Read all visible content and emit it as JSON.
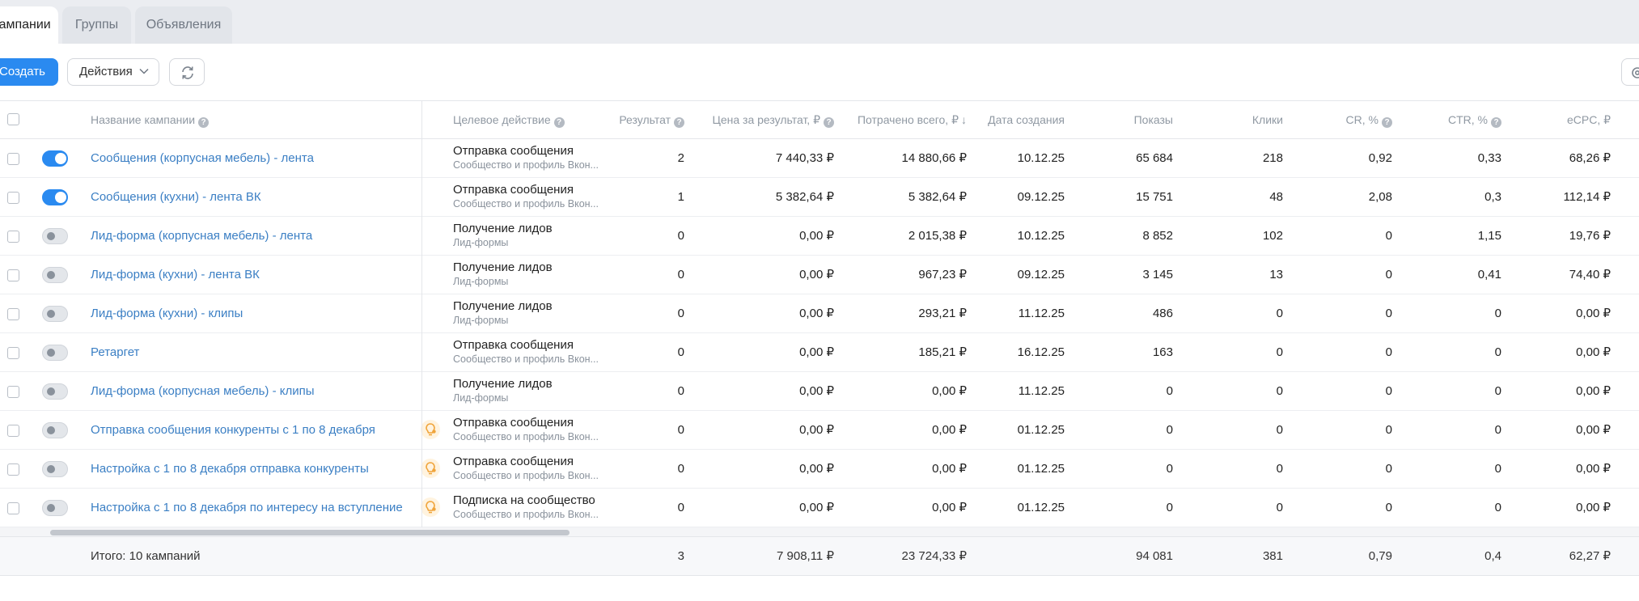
{
  "tabs": [
    "Кампании",
    "Группы",
    "Объявления"
  ],
  "toolbar": {
    "create_label": "Создать",
    "actions_label": "Действия"
  },
  "icons": {
    "refresh": "refresh-icon",
    "settings": "gear-icon",
    "hint": "question-icon",
    "recommendation": "lightbulb-icon"
  },
  "colors": {
    "accent": "#2a8af0",
    "link": "#3b7fc4",
    "recommendation": "#f0a43a"
  },
  "columns": {
    "name": "Название кампании",
    "goal": "Целевое действие",
    "result": "Результат",
    "price": "Цена за результат, ₽",
    "spent": "Потрачено всего, ₽",
    "date": "Дата создания",
    "shows": "Показы",
    "clicks": "Клики",
    "cr": "CR, %",
    "ctr": "CTR, %",
    "ecpc": "eCPC, ₽"
  },
  "rows": [
    {
      "enabled": true,
      "recommendation": false,
      "name": "Сообщения (корпусная мебель) - лента",
      "goal": "Отправка сообщения",
      "goal_sub": "Сообщество и профиль Вкон...",
      "result": "2",
      "price": "7 440,33 ₽",
      "spent": "14 880,66 ₽",
      "date": "10.12.25",
      "shows": "65 684",
      "clicks": "218",
      "cr": "0,92",
      "ctr": "0,33",
      "ecpc": "68,26 ₽"
    },
    {
      "enabled": true,
      "recommendation": false,
      "name": "Сообщения (кухни) - лента ВК",
      "goal": "Отправка сообщения",
      "goal_sub": "Сообщество и профиль Вкон...",
      "result": "1",
      "price": "5 382,64 ₽",
      "spent": "5 382,64 ₽",
      "date": "09.12.25",
      "shows": "15 751",
      "clicks": "48",
      "cr": "2,08",
      "ctr": "0,3",
      "ecpc": "112,14 ₽"
    },
    {
      "enabled": false,
      "recommendation": false,
      "name": "Лид-форма (корпусная мебель) - лента",
      "goal": "Получение лидов",
      "goal_sub": "Лид-формы",
      "result": "0",
      "price": "0,00 ₽",
      "spent": "2 015,38 ₽",
      "date": "10.12.25",
      "shows": "8 852",
      "clicks": "102",
      "cr": "0",
      "ctr": "1,15",
      "ecpc": "19,76 ₽"
    },
    {
      "enabled": false,
      "recommendation": false,
      "name": "Лид-форма (кухни) - лента ВК",
      "goal": "Получение лидов",
      "goal_sub": "Лид-формы",
      "result": "0",
      "price": "0,00 ₽",
      "spent": "967,23 ₽",
      "date": "09.12.25",
      "shows": "3 145",
      "clicks": "13",
      "cr": "0",
      "ctr": "0,41",
      "ecpc": "74,40 ₽"
    },
    {
      "enabled": false,
      "recommendation": false,
      "name": "Лид-форма (кухни) - клипы",
      "goal": "Получение лидов",
      "goal_sub": "Лид-формы",
      "result": "0",
      "price": "0,00 ₽",
      "spent": "293,21 ₽",
      "date": "11.12.25",
      "shows": "486",
      "clicks": "0",
      "cr": "0",
      "ctr": "0",
      "ecpc": "0,00 ₽"
    },
    {
      "enabled": false,
      "recommendation": false,
      "name": "Ретаргет",
      "goal": "Отправка сообщения",
      "goal_sub": "Сообщество и профиль Вкон...",
      "result": "0",
      "price": "0,00 ₽",
      "spent": "185,21 ₽",
      "date": "16.12.25",
      "shows": "163",
      "clicks": "0",
      "cr": "0",
      "ctr": "0",
      "ecpc": "0,00 ₽"
    },
    {
      "enabled": false,
      "recommendation": false,
      "name": "Лид-форма (корпусная мебель) - клипы",
      "goal": "Получение лидов",
      "goal_sub": "Лид-формы",
      "result": "0",
      "price": "0,00 ₽",
      "spent": "0,00 ₽",
      "date": "11.12.25",
      "shows": "0",
      "clicks": "0",
      "cr": "0",
      "ctr": "0",
      "ecpc": "0,00 ₽"
    },
    {
      "enabled": false,
      "recommendation": true,
      "name": "Отправка сообщения конкуренты с 1 по 8 декабря",
      "goal": "Отправка сообщения",
      "goal_sub": "Сообщество и профиль Вкон...",
      "result": "0",
      "price": "0,00 ₽",
      "spent": "0,00 ₽",
      "date": "01.12.25",
      "shows": "0",
      "clicks": "0",
      "cr": "0",
      "ctr": "0",
      "ecpc": "0,00 ₽"
    },
    {
      "enabled": false,
      "recommendation": true,
      "name": "Настройка с 1 по 8 декабря отправка конкуренты",
      "goal": "Отправка сообщения",
      "goal_sub": "Сообщество и профиль Вкон...",
      "result": "0",
      "price": "0,00 ₽",
      "spent": "0,00 ₽",
      "date": "01.12.25",
      "shows": "0",
      "clicks": "0",
      "cr": "0",
      "ctr": "0",
      "ecpc": "0,00 ₽"
    },
    {
      "enabled": false,
      "recommendation": true,
      "name": "Настройка с 1 по 8 декабря по интересу на вступление",
      "goal": "Подписка на сообщество",
      "goal_sub": "Сообщество и профиль Вкон...",
      "result": "0",
      "price": "0,00 ₽",
      "spent": "0,00 ₽",
      "date": "01.12.25",
      "shows": "0",
      "clicks": "0",
      "cr": "0",
      "ctr": "0",
      "ecpc": "0,00 ₽"
    }
  ],
  "totals": {
    "label": "Итого: 10 кампаний",
    "result": "3",
    "price": "7 908,11 ₽",
    "spent": "23 724,33 ₽",
    "shows": "94 081",
    "clicks": "381",
    "cr": "0,79",
    "ctr": "0,4",
    "ecpc": "62,27 ₽"
  }
}
